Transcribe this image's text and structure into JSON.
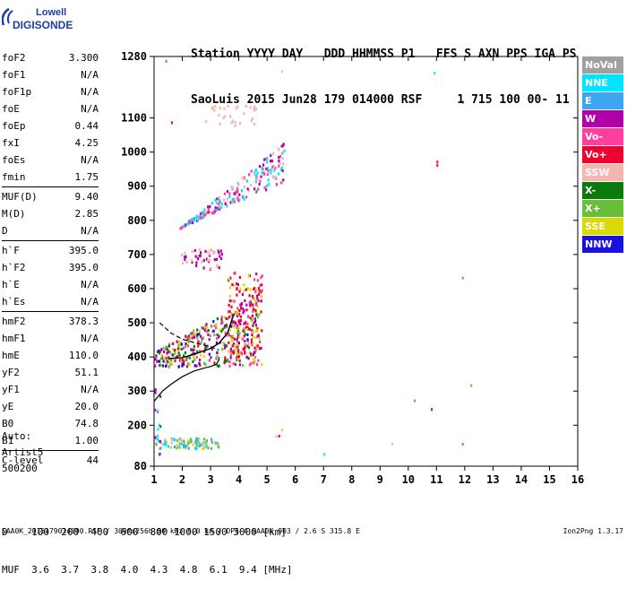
{
  "logo": {
    "line1": "Lowell",
    "line2": "DIGISONDE"
  },
  "header": {
    "line1": "Station YYYY DAY   DDD HHMMSS P1   FFS S AXN PPS IGA PS",
    "line2": "SaoLuis 2015 Jun28 179 014000 RSF     1 715 100 00- 11"
  },
  "params": {
    "group1": [
      {
        "name": "foF2",
        "value": "3.300"
      },
      {
        "name": "foF1",
        "value": "N/A"
      },
      {
        "name": "foF1p",
        "value": "N/A"
      },
      {
        "name": "foE",
        "value": "N/A"
      },
      {
        "name": "foEp",
        "value": "0.44"
      },
      {
        "name": "fxI",
        "value": "4.25"
      },
      {
        "name": "foEs",
        "value": "N/A"
      },
      {
        "name": "fmin",
        "value": "1.75"
      }
    ],
    "group2": [
      {
        "name": "MUF(D)",
        "value": "9.40"
      },
      {
        "name": "M(D)",
        "value": "2.85"
      },
      {
        "name": "D",
        "value": "N/A"
      }
    ],
    "group3": [
      {
        "name": "h`F",
        "value": "395.0"
      },
      {
        "name": "h`F2",
        "value": "395.0"
      },
      {
        "name": "h`E",
        "value": "N/A"
      },
      {
        "name": "h`Es",
        "value": "N/A"
      }
    ],
    "group4": [
      {
        "name": "hmF2",
        "value": "378.3"
      },
      {
        "name": "hmF1",
        "value": "N/A"
      },
      {
        "name": "hmE",
        "value": "110.0"
      },
      {
        "name": "yF2",
        "value": "51.1"
      },
      {
        "name": "yF1",
        "value": "N/A"
      },
      {
        "name": "yE",
        "value": "20.0"
      },
      {
        "name": "B0",
        "value": "74.8"
      },
      {
        "name": "B1",
        "value": "1.00"
      }
    ],
    "group5": [
      {
        "name": "C-level",
        "value": "44"
      }
    ]
  },
  "auto": {
    "line1": "Auto:",
    "line2": "Artist5",
    "line3": "500200"
  },
  "legend": [
    {
      "label": "NoVal",
      "color": "#a0a0a0"
    },
    {
      "label": "NNE",
      "color": "#00e5ff"
    },
    {
      "label": "E",
      "color": "#3da6f2"
    },
    {
      "label": "W",
      "color": "#b000a8"
    },
    {
      "label": "Vo-",
      "color": "#ff3ea0"
    },
    {
      "label": "Vo+",
      "color": "#ee0030"
    },
    {
      "label": "SSW",
      "color": "#f4b6b0"
    },
    {
      "label": "X-",
      "color": "#0a7a0a"
    },
    {
      "label": "X+",
      "color": "#6abf3a"
    },
    {
      "label": "SSE",
      "color": "#dada00"
    },
    {
      "label": "NNW",
      "color": "#1a10e0"
    }
  ],
  "muf_table": {
    "line1": "D    100  200  400  600  800 1000 1500 3000 [km]",
    "line2": "MUF  3.6  3.7  3.8  4.0  4.3  4.8  6.1  9.4 [MHz]"
  },
  "footer": {
    "left": "SAA0K_2015179014000.RSF / 300fx256h 50 kHz 5.0 km / DPS-4 SAA0K 903 / 2.6 S 315.8 E",
    "right": "Ion2Png 1.3.17"
  },
  "chart_data": {
    "type": "scatter",
    "xlim": [
      1,
      16
    ],
    "ylim": [
      80,
      1280
    ],
    "x_ticks": [
      1,
      2,
      3,
      4,
      5,
      6,
      7,
      8,
      9,
      10,
      11,
      12,
      13,
      14,
      15,
      16
    ],
    "y_ticks": [
      80,
      200,
      300,
      400,
      500,
      600,
      700,
      800,
      900,
      1000,
      1100,
      1280
    ],
    "profile_solid": [
      [
        1.0,
        270
      ],
      [
        1.3,
        300
      ],
      [
        1.6,
        320
      ],
      [
        2.0,
        342
      ],
      [
        2.4,
        358
      ],
      [
        2.8,
        368
      ],
      [
        3.0,
        372
      ],
      [
        3.2,
        378
      ],
      [
        3.3,
        392
      ],
      [
        3.3,
        400
      ]
    ],
    "trace_dashed": [
      [
        1.2,
        500
      ],
      [
        1.6,
        470
      ],
      [
        2.0,
        452
      ],
      [
        2.5,
        440
      ],
      [
        3.0,
        430
      ],
      [
        3.3,
        420
      ]
    ],
    "trace_solid_upper": [
      [
        1.5,
        395
      ],
      [
        2.0,
        398
      ],
      [
        2.5,
        410
      ],
      [
        3.0,
        425
      ],
      [
        3.3,
        440
      ],
      [
        3.6,
        470
      ],
      [
        3.8,
        520
      ]
    ],
    "clusters": [
      {
        "x": [
          1.0,
          4.7
        ],
        "y": [
          375,
          600
        ],
        "colors": [
          "W",
          "Vo+",
          "Vo-",
          "X-",
          "X+",
          "SSE",
          "NNW"
        ],
        "count": 320
      },
      {
        "x": [
          3.6,
          4.8
        ],
        "y": [
          380,
          650
        ],
        "colors": [
          "W",
          "Vo+",
          "Vo-",
          "SSE"
        ],
        "count": 180
      },
      {
        "x": [
          1.9,
          5.6
        ],
        "y": [
          780,
          1010
        ],
        "colors": [
          "W",
          "SSW",
          "Vo-",
          "NNE"
        ],
        "count": 220
      },
      {
        "x": [
          1.9,
          3.4
        ],
        "y": [
          660,
          720
        ],
        "colors": [
          "W",
          "SSW"
        ],
        "count": 50
      },
      {
        "x": [
          2.8,
          4.6
        ],
        "y": [
          1080,
          1140
        ],
        "colors": [
          "SSW"
        ],
        "count": 30
      },
      {
        "x": [
          1.0,
          3.3
        ],
        "y": [
          135,
          165
        ],
        "colors": [
          "NNE",
          "E",
          "X+",
          "SSE",
          "SSW"
        ],
        "count": 90
      },
      {
        "x": [
          1.0,
          1.2
        ],
        "y": [
          110,
          320
        ],
        "colors": [
          "W",
          "E",
          "X-",
          "NNE"
        ],
        "count": 14
      }
    ],
    "isolated_points": [
      {
        "x": 11.0,
        "y": 975,
        "c": "Vo+"
      },
      {
        "x": 11.0,
        "y": 965,
        "c": "Vo+"
      },
      {
        "x": 11.9,
        "y": 1150,
        "c": "Vo+"
      },
      {
        "x": 11.9,
        "y": 148,
        "c": "Vo-"
      },
      {
        "x": 10.9,
        "y": 1235,
        "c": "NNE"
      },
      {
        "x": 12.2,
        "y": 320,
        "c": "X+"
      },
      {
        "x": 10.2,
        "y": 275,
        "c": "E"
      },
      {
        "x": 10.8,
        "y": 250,
        "c": "Vo+"
      },
      {
        "x": 11.9,
        "y": 635,
        "c": "E"
      },
      {
        "x": 9.4,
        "y": 148,
        "c": "SSW"
      },
      {
        "x": 7.0,
        "y": 118,
        "c": "NNE"
      },
      {
        "x": 5.5,
        "y": 1240,
        "c": "SSW"
      },
      {
        "x": 5.5,
        "y": 190,
        "c": "SSE"
      },
      {
        "x": 5.4,
        "y": 172,
        "c": "Vo+"
      },
      {
        "x": 5.3,
        "y": 170,
        "c": "SSW"
      },
      {
        "x": 1.4,
        "y": 1270,
        "c": "Vo-"
      },
      {
        "x": 1.6,
        "y": 1090,
        "c": "W"
      },
      {
        "x": 4.2,
        "y": 470,
        "c": "X-"
      },
      {
        "x": 1.1,
        "y": 245,
        "c": "NNE"
      },
      {
        "x": 1.2,
        "y": 200,
        "c": "X-"
      }
    ]
  }
}
